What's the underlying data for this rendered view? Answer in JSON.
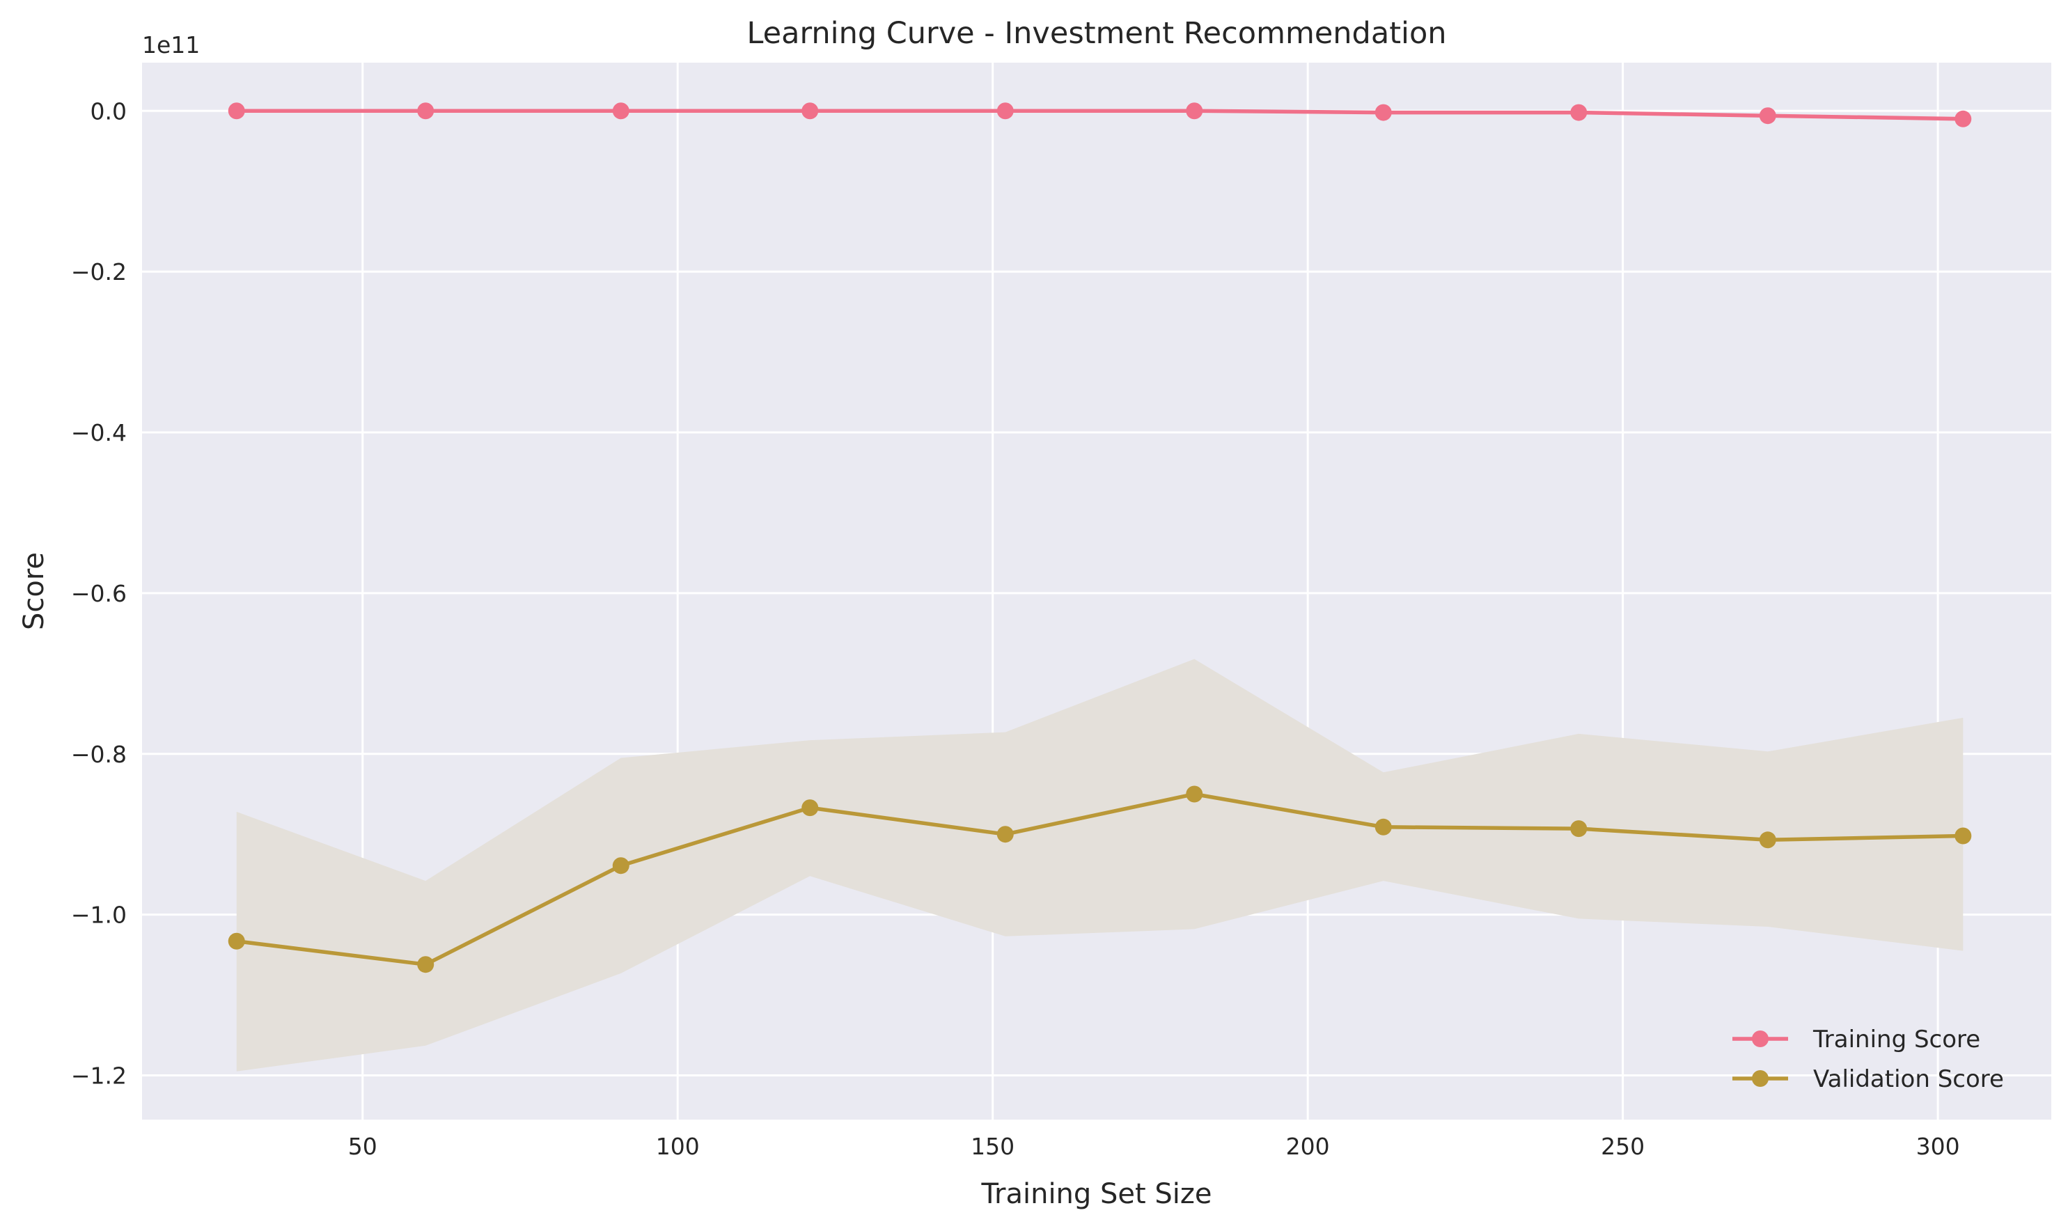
{
  "chart_data": {
    "type": "line",
    "title": "Learning Curve - Investment Recommendation",
    "xlabel": "Training Set Size",
    "ylabel": "Score",
    "y_offset_label": "1e11",
    "xlim": [
      15,
      318
    ],
    "ylim": [
      -1.255,
      0.06
    ],
    "x_ticks": [
      50,
      100,
      150,
      200,
      250,
      300
    ],
    "y_ticks": [
      0.0,
      -0.2,
      -0.4,
      -0.6,
      -0.8,
      -1.0,
      -1.2
    ],
    "y_tick_labels": [
      "0.0",
      "−0.2",
      "−0.4",
      "−0.6",
      "−0.8",
      "−1.0",
      "−1.2"
    ],
    "grid": true,
    "legend_position": "lower-right",
    "x": [
      30,
      60,
      91,
      121,
      152,
      182,
      212,
      243,
      273,
      304
    ],
    "series": [
      {
        "name": "Training Score",
        "color": "#f0708a",
        "values": [
          0.0,
          0.0,
          0.0,
          0.0,
          0.0,
          0.0,
          -0.002,
          -0.002,
          -0.006,
          -0.01
        ],
        "band_lower": [
          0.0,
          0.0,
          0.0,
          0.0,
          0.0,
          0.0,
          -0.003,
          -0.003,
          -0.008,
          -0.013
        ],
        "band_upper": [
          0.0,
          0.0,
          0.0,
          0.0,
          0.0,
          0.0,
          -0.001,
          -0.001,
          -0.004,
          -0.007
        ]
      },
      {
        "name": "Validation Score",
        "color": "#ba9838",
        "band_color": "#e4e0da",
        "values": [
          -1.033,
          -1.062,
          -0.939,
          -0.867,
          -0.9,
          -0.85,
          -0.891,
          -0.893,
          -0.907,
          -0.902
        ],
        "band_lower": [
          -1.195,
          -1.163,
          -1.073,
          -0.952,
          -1.027,
          -1.018,
          -0.958,
          -1.005,
          -1.015,
          -1.045
        ],
        "band_upper": [
          -0.872,
          -0.958,
          -0.805,
          -0.783,
          -0.773,
          -0.682,
          -0.823,
          -0.775,
          -0.797,
          -0.755
        ]
      }
    ]
  },
  "colors": {
    "plot_background": "#eaeaf2",
    "grid": "#ffffff",
    "text": "#262626"
  }
}
